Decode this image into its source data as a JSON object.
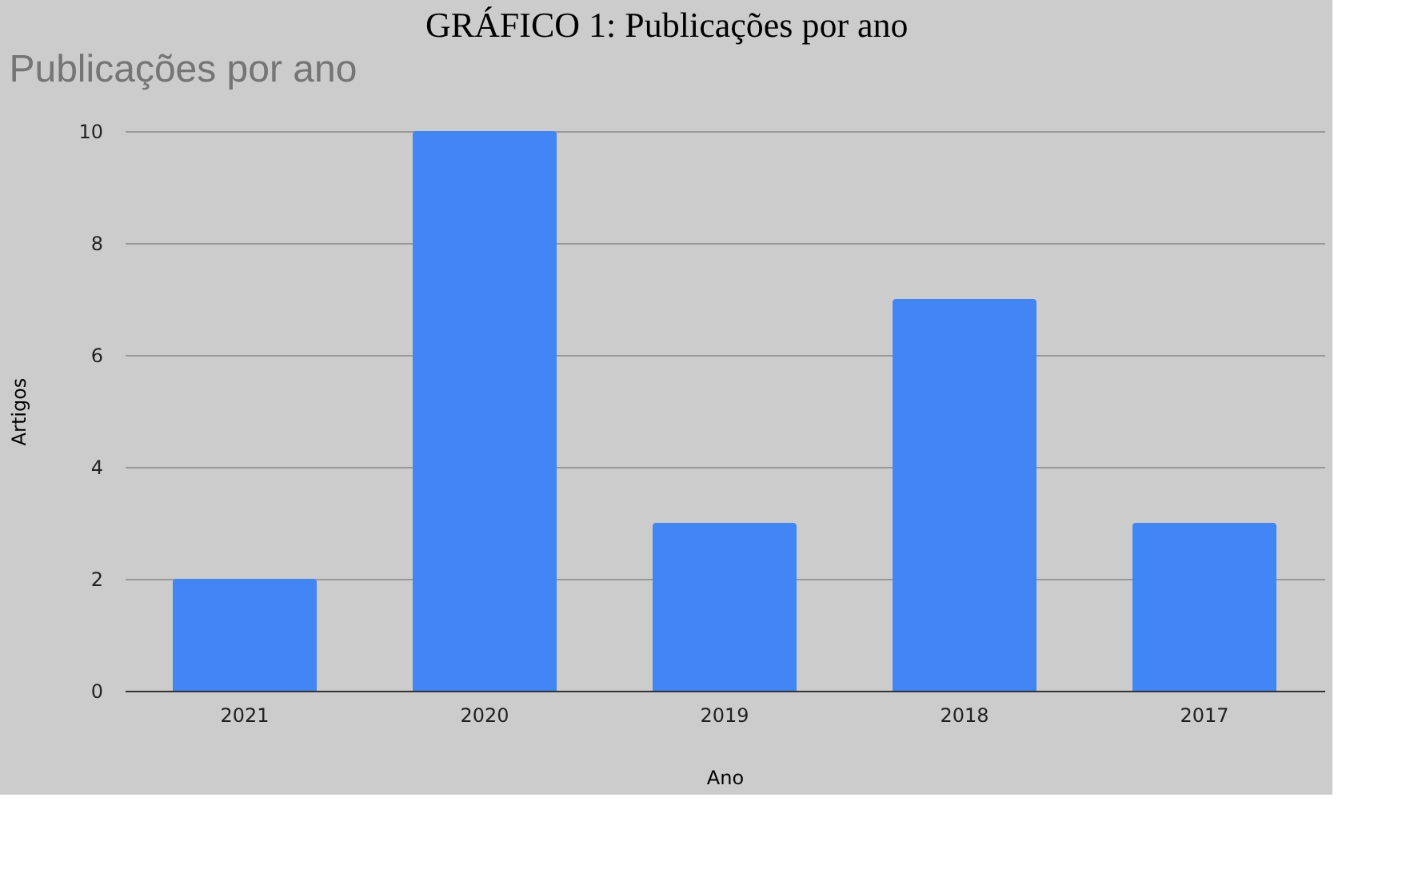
{
  "chart_data": {
    "type": "bar",
    "title": "GRÁFICO 1: Publicações por ano",
    "subtitle": "Publicações por ano",
    "xlabel": "Ano",
    "ylabel": "Artigos",
    "categories": [
      "2021",
      "2020",
      "2019",
      "2018",
      "2017"
    ],
    "values": [
      2,
      10,
      3,
      7,
      3
    ],
    "color": "#4285f4",
    "ylim": [
      0,
      10
    ],
    "yticks": [
      0,
      2,
      4,
      6,
      8,
      10
    ],
    "grid": "y"
  }
}
